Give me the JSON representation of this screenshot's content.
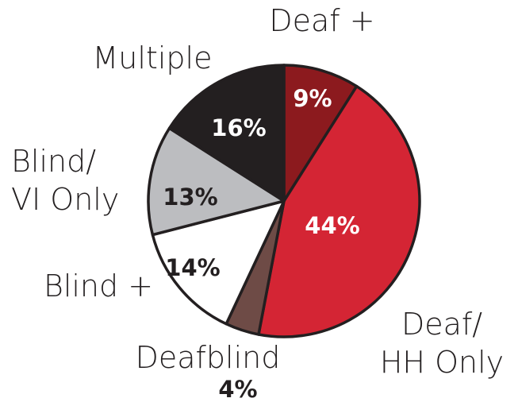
{
  "chart_data": {
    "type": "pie",
    "categories": [
      "Deaf +",
      "Deaf/ HH Only",
      "Deafblind",
      "Blind +",
      "Blind/ VI Only",
      "Multiple"
    ],
    "values": [
      9,
      44,
      4,
      14,
      13,
      16
    ],
    "value_labels": [
      "9%",
      "44%",
      "4%",
      "14%",
      "13%",
      "16%"
    ],
    "colors": [
      "#8c1a1e",
      "#d42534",
      "#6e4b46",
      "#ffffff",
      "#bcbdc0",
      "#231f20"
    ],
    "start_angle": 0,
    "direction": "clockwise"
  }
}
